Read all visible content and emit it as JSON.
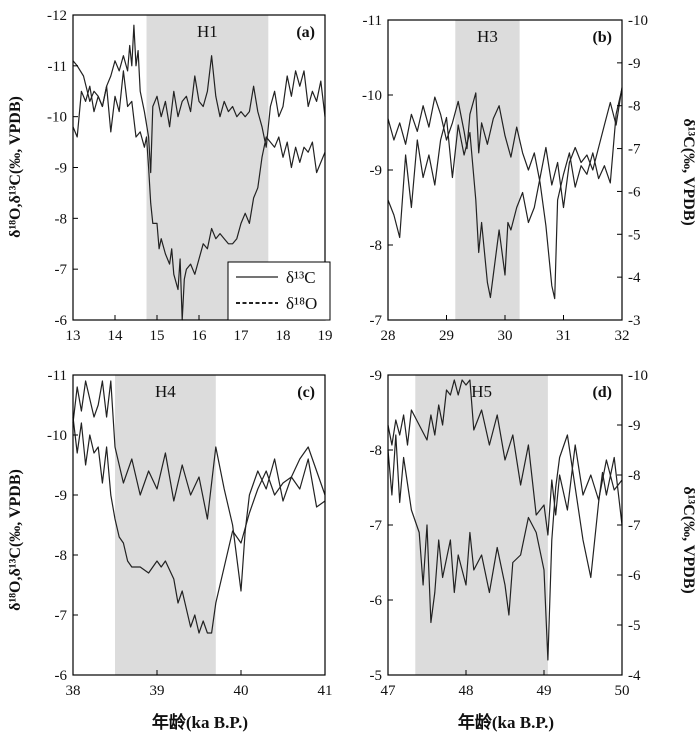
{
  "figure": {
    "y_left_label": "δ¹⁸O,δ¹³C(‰, VPDB)",
    "y_right_label": "δ¹³C(‰, VPDB)",
    "x_label": "年龄(ka B.P.)",
    "legend": [
      {
        "series": "d13C",
        "label": "δ¹³C",
        "style": "solid"
      },
      {
        "series": "d18O",
        "label": "δ¹⁸O",
        "style": "dashed"
      }
    ],
    "colors": {
      "shade": "#dcdcdc",
      "line": "#222222",
      "axis": "#000000"
    }
  },
  "chart_data": [
    {
      "panel": "(a)",
      "type": "line",
      "event": "H1",
      "shade": [
        14.75,
        17.65
      ],
      "xlim": [
        13,
        19
      ],
      "xticks": [
        13,
        14,
        15,
        16,
        17,
        18,
        19
      ],
      "left_axis": {
        "lim": [
          -6,
          -12
        ],
        "ticks": [
          -6,
          -7,
          -8,
          -9,
          -10,
          -11,
          -12
        ]
      },
      "right_axis": null,
      "series": [
        {
          "name": "δ¹³C",
          "axis": "left",
          "x": [
            13.0,
            13.1,
            13.25,
            13.4,
            13.5,
            13.6,
            13.7,
            13.8,
            13.9,
            14.0,
            14.1,
            14.2,
            14.3,
            14.35,
            14.4,
            14.45,
            14.5,
            14.55,
            14.6,
            14.7,
            14.8,
            14.85,
            14.9,
            15.0,
            15.1,
            15.2,
            15.3,
            15.4,
            15.5,
            15.6,
            15.7,
            15.8,
            15.9,
            16.0,
            16.1,
            16.2,
            16.3,
            16.4,
            16.5,
            16.6,
            16.7,
            16.8,
            16.9,
            17.0,
            17.1,
            17.2,
            17.3,
            17.4,
            17.5,
            17.6,
            17.7,
            17.8,
            17.9,
            18.0,
            18.1,
            18.2,
            18.3,
            18.4,
            18.5,
            18.6,
            18.7,
            18.8,
            18.9,
            19.0
          ],
          "y": [
            -11.1,
            -11.0,
            -10.8,
            -10.3,
            -10.5,
            -10.4,
            -10.2,
            -10.6,
            -10.8,
            -11.1,
            -10.9,
            -11.2,
            -10.9,
            -11.4,
            -11.0,
            -11.8,
            -11.0,
            -11.3,
            -10.5,
            -10.1,
            -9.6,
            -8.9,
            -10.2,
            -10.4,
            -10.0,
            -10.3,
            -9.8,
            -10.5,
            -10.0,
            -10.3,
            -10.4,
            -10.1,
            -10.8,
            -10.3,
            -10.2,
            -10.5,
            -11.2,
            -10.4,
            -10.0,
            -10.3,
            -10.1,
            -10.2,
            -10.0,
            -10.1,
            -10.0,
            -10.1,
            -10.6,
            -10.1,
            -9.8,
            -9.4,
            -10.2,
            -10.5,
            -10.0,
            -10.2,
            -10.8,
            -10.4,
            -10.9,
            -10.6,
            -10.9,
            -10.2,
            -10.5,
            -10.3,
            -10.7,
            -10.0
          ]
        },
        {
          "name": "δ¹⁸O",
          "axis": "left",
          "x": [
            13.0,
            13.1,
            13.2,
            13.3,
            13.4,
            13.5,
            13.6,
            13.7,
            13.8,
            13.9,
            14.0,
            14.1,
            14.2,
            14.3,
            14.4,
            14.5,
            14.6,
            14.7,
            14.75,
            14.8,
            14.85,
            14.9,
            15.0,
            15.05,
            15.1,
            15.2,
            15.3,
            15.35,
            15.4,
            15.5,
            15.55,
            15.6,
            15.65,
            15.7,
            15.8,
            15.9,
            16.0,
            16.1,
            16.2,
            16.3,
            16.4,
            16.5,
            16.6,
            16.7,
            16.8,
            16.9,
            17.0,
            17.1,
            17.2,
            17.3,
            17.4,
            17.5,
            17.6,
            17.7,
            17.8,
            17.9,
            18.0,
            18.1,
            18.2,
            18.3,
            18.4,
            18.5,
            18.6,
            18.7,
            18.8,
            18.9,
            19.0
          ],
          "y": [
            -9.8,
            -9.6,
            -10.5,
            -10.3,
            -10.6,
            -10.1,
            -10.4,
            -10.2,
            -10.6,
            -9.7,
            -10.4,
            -10.1,
            -10.9,
            -10.2,
            -10.3,
            -9.6,
            -9.7,
            -9.4,
            -9.6,
            -9.0,
            -8.3,
            -7.9,
            -7.9,
            -7.4,
            -7.6,
            -7.3,
            -7.1,
            -7.4,
            -6.9,
            -6.6,
            -7.2,
            -6.0,
            -6.8,
            -7.0,
            -7.1,
            -6.9,
            -7.2,
            -7.5,
            -7.4,
            -7.8,
            -7.6,
            -7.7,
            -7.6,
            -7.5,
            -7.5,
            -7.6,
            -7.9,
            -8.1,
            -7.9,
            -8.4,
            -8.6,
            -9.2,
            -9.6,
            -9.5,
            -9.4,
            -9.6,
            -9.2,
            -9.5,
            -9.0,
            -9.4,
            -9.1,
            -9.4,
            -9.3,
            -9.5,
            -8.9,
            -9.1,
            -9.3
          ]
        }
      ]
    },
    {
      "panel": "(b)",
      "type": "line",
      "event": "H3",
      "shade": [
        29.15,
        30.25
      ],
      "xlim": [
        28,
        32
      ],
      "xticks": [
        28,
        29,
        30,
        31,
        32
      ],
      "left_axis": {
        "lim": [
          -7,
          -11
        ],
        "ticks": [
          -7,
          -8,
          -9,
          -10,
          -11
        ]
      },
      "right_axis": {
        "lim": [
          -3,
          -10
        ],
        "ticks": [
          -3,
          -4,
          -5,
          -6,
          -7,
          -8,
          -9,
          -10
        ]
      },
      "series": [
        {
          "name": "δ¹³C",
          "axis": "right",
          "x": [
            28.0,
            28.1,
            28.2,
            28.3,
            28.4,
            28.5,
            28.6,
            28.7,
            28.8,
            28.9,
            29.0,
            29.1,
            29.2,
            29.3,
            29.35,
            29.4,
            29.5,
            29.55,
            29.6,
            29.7,
            29.8,
            29.9,
            30.0,
            30.1,
            30.2,
            30.3,
            30.4,
            30.5,
            30.6,
            30.7,
            30.8,
            30.85,
            30.9,
            31.0,
            31.1,
            31.2,
            31.3,
            31.4,
            31.5,
            31.6,
            31.7,
            31.8,
            31.9,
            32.0
          ],
          "y": [
            -7.7,
            -7.2,
            -7.6,
            -7.1,
            -7.8,
            -7.4,
            -8.0,
            -7.5,
            -8.2,
            -7.8,
            -7.2,
            -7.6,
            -8.1,
            -7.4,
            -7.0,
            -7.8,
            -8.3,
            -6.9,
            -7.6,
            -7.1,
            -7.7,
            -8.0,
            -7.3,
            -6.8,
            -7.5,
            -6.9,
            -6.5,
            -6.9,
            -6.2,
            -5.2,
            -3.8,
            -3.5,
            -5.8,
            -6.4,
            -6.9,
            -6.1,
            -6.6,
            -6.4,
            -6.9,
            -6.3,
            -6.6,
            -6.2,
            -7.8,
            -8.4
          ]
        },
        {
          "name": "δ¹⁸O",
          "axis": "left",
          "x": [
            28.0,
            28.1,
            28.2,
            28.3,
            28.4,
            28.5,
            28.6,
            28.7,
            28.8,
            28.9,
            29.0,
            29.1,
            29.2,
            29.3,
            29.4,
            29.5,
            29.55,
            29.6,
            29.65,
            29.7,
            29.75,
            29.8,
            29.85,
            29.9,
            30.0,
            30.05,
            30.1,
            30.2,
            30.3,
            30.4,
            30.5,
            30.6,
            30.7,
            30.8,
            30.9,
            31.0,
            31.1,
            31.2,
            31.3,
            31.4,
            31.5,
            31.6,
            31.7,
            31.8,
            31.9,
            32.0
          ],
          "y": [
            -8.6,
            -8.4,
            -8.1,
            -9.2,
            -8.5,
            -9.4,
            -8.9,
            -9.2,
            -8.8,
            -9.4,
            -9.7,
            -8.9,
            -9.6,
            -9.2,
            -9.5,
            -8.6,
            -7.9,
            -8.3,
            -7.9,
            -7.5,
            -7.3,
            -7.6,
            -7.9,
            -8.2,
            -7.6,
            -8.3,
            -8.2,
            -8.5,
            -8.7,
            -8.3,
            -8.5,
            -8.9,
            -9.3,
            -8.8,
            -9.1,
            -8.5,
            -9.1,
            -9.3,
            -9.1,
            -9.2,
            -9.0,
            -9.3,
            -9.6,
            -9.9,
            -9.6,
            -10.1
          ]
        }
      ]
    },
    {
      "panel": "(c)",
      "type": "line",
      "event": "H4",
      "shade": [
        38.5,
        39.7
      ],
      "xlim": [
        38,
        41
      ],
      "xticks": [
        38,
        39,
        40,
        41
      ],
      "left_axis": {
        "lim": [
          -6,
          -11
        ],
        "ticks": [
          -6,
          -7,
          -8,
          -9,
          -10,
          -11
        ]
      },
      "right_axis": null,
      "series": [
        {
          "name": "δ¹³C",
          "axis": "left",
          "x": [
            38.0,
            38.05,
            38.1,
            38.15,
            38.2,
            38.25,
            38.3,
            38.35,
            38.4,
            38.45,
            38.5,
            38.6,
            38.7,
            38.8,
            38.9,
            39.0,
            39.1,
            39.2,
            39.3,
            39.4,
            39.5,
            39.6,
            39.7,
            39.8,
            39.9,
            40.0,
            40.05,
            40.1,
            40.2,
            40.3,
            40.4,
            40.5,
            40.6,
            40.7,
            40.8,
            40.9,
            41.0
          ],
          "y": [
            -10.2,
            -10.8,
            -10.4,
            -10.9,
            -10.6,
            -10.3,
            -10.5,
            -10.9,
            -10.3,
            -10.9,
            -9.8,
            -9.2,
            -9.6,
            -9.0,
            -9.4,
            -9.1,
            -9.7,
            -8.9,
            -9.5,
            -9.0,
            -9.3,
            -8.6,
            -9.8,
            -9.1,
            -8.5,
            -7.4,
            -8.4,
            -9.0,
            -9.4,
            -9.1,
            -9.6,
            -8.9,
            -9.3,
            -9.1,
            -9.6,
            -8.8,
            -8.9
          ]
        },
        {
          "name": "δ¹⁸O",
          "axis": "left",
          "x": [
            38.0,
            38.05,
            38.1,
            38.15,
            38.2,
            38.25,
            38.3,
            38.35,
            38.4,
            38.45,
            38.5,
            38.55,
            38.6,
            38.65,
            38.7,
            38.8,
            38.9,
            39.0,
            39.05,
            39.1,
            39.2,
            39.25,
            39.3,
            39.4,
            39.45,
            39.5,
            39.55,
            39.6,
            39.65,
            39.7,
            39.8,
            39.9,
            40.0,
            40.1,
            40.2,
            40.3,
            40.4,
            40.5,
            40.6,
            40.7,
            40.8,
            40.9,
            41.0
          ],
          "y": [
            -10.3,
            -9.7,
            -10.2,
            -9.5,
            -10.0,
            -9.7,
            -9.8,
            -9.2,
            -9.8,
            -9.0,
            -8.6,
            -8.3,
            -8.2,
            -7.9,
            -7.8,
            -7.8,
            -7.7,
            -7.9,
            -7.8,
            -7.9,
            -7.6,
            -7.2,
            -7.4,
            -6.8,
            -7.0,
            -6.7,
            -6.9,
            -6.7,
            -6.7,
            -7.2,
            -7.8,
            -8.4,
            -8.2,
            -8.7,
            -9.1,
            -9.4,
            -9.0,
            -9.2,
            -9.3,
            -9.6,
            -9.8,
            -9.4,
            -9.0
          ]
        }
      ]
    },
    {
      "panel": "(d)",
      "type": "line",
      "event": "H5",
      "shade": [
        47.35,
        49.05
      ],
      "xlim": [
        47,
        50
      ],
      "xticks": [
        47,
        48,
        49,
        50
      ],
      "left_axis": {
        "lim": [
          -5,
          -9
        ],
        "ticks": [
          -5,
          -6,
          -7,
          -8,
          -9
        ]
      },
      "right_axis": {
        "lim": [
          -4,
          -10
        ],
        "ticks": [
          -4,
          -5,
          -6,
          -7,
          -8,
          -9,
          -10
        ]
      },
      "series": [
        {
          "name": "δ¹³C",
          "axis": "right",
          "x": [
            47.0,
            47.05,
            47.1,
            47.15,
            47.2,
            47.25,
            47.3,
            47.4,
            47.5,
            47.55,
            47.6,
            47.65,
            47.7,
            47.75,
            47.8,
            47.85,
            47.9,
            47.95,
            48.0,
            48.05,
            48.1,
            48.2,
            48.3,
            48.4,
            48.5,
            48.6,
            48.7,
            48.8,
            48.9,
            49.0,
            49.05,
            49.1,
            49.15,
            49.2,
            49.3,
            49.4,
            49.5,
            49.6,
            49.7,
            49.8,
            49.9,
            50.0
          ],
          "y": [
            -9.0,
            -8.6,
            -9.1,
            -8.8,
            -9.2,
            -8.6,
            -9.3,
            -9.0,
            -8.7,
            -9.2,
            -8.8,
            -9.4,
            -9.0,
            -9.7,
            -9.6,
            -9.9,
            -9.6,
            -9.9,
            -9.8,
            -9.9,
            -8.9,
            -9.3,
            -8.6,
            -9.2,
            -8.3,
            -8.8,
            -7.8,
            -8.6,
            -7.2,
            -7.4,
            -6.8,
            -7.9,
            -7.2,
            -8.0,
            -7.3,
            -8.6,
            -7.6,
            -8.0,
            -7.5,
            -8.3,
            -7.7,
            -7.9
          ]
        },
        {
          "name": "δ¹⁸O",
          "axis": "left",
          "x": [
            47.0,
            47.05,
            47.1,
            47.15,
            47.2,
            47.3,
            47.4,
            47.45,
            47.5,
            47.55,
            47.6,
            47.65,
            47.7,
            47.8,
            47.85,
            47.9,
            48.0,
            48.05,
            48.1,
            48.2,
            48.3,
            48.4,
            48.5,
            48.55,
            48.6,
            48.7,
            48.8,
            48.9,
            49.0,
            49.05,
            49.1,
            49.15,
            49.2,
            49.3,
            49.4,
            49.5,
            49.6,
            49.7,
            49.75,
            49.8,
            49.9,
            50.0
          ],
          "y": [
            -8.0,
            -7.4,
            -8.2,
            -7.3,
            -7.9,
            -7.2,
            -6.9,
            -6.2,
            -7.0,
            -5.7,
            -6.1,
            -6.8,
            -6.3,
            -6.8,
            -6.1,
            -6.6,
            -6.2,
            -6.9,
            -6.4,
            -6.6,
            -6.1,
            -6.7,
            -6.2,
            -5.8,
            -6.5,
            -6.6,
            -7.1,
            -6.9,
            -6.4,
            -5.2,
            -6.8,
            -7.5,
            -7.9,
            -8.2,
            -7.5,
            -6.8,
            -6.3,
            -7.3,
            -7.7,
            -7.4,
            -7.9,
            -7.0
          ]
        }
      ]
    }
  ]
}
